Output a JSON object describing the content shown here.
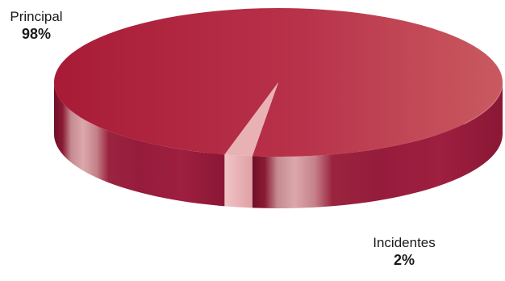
{
  "chart_data": {
    "type": "pie",
    "title": "",
    "labels": [
      "Principal",
      "Incidentes"
    ],
    "values": [
      98,
      2
    ],
    "value_labels": [
      "98%",
      "2%"
    ],
    "colors": [
      "#a81e3c",
      "#e8b2b4"
    ]
  }
}
